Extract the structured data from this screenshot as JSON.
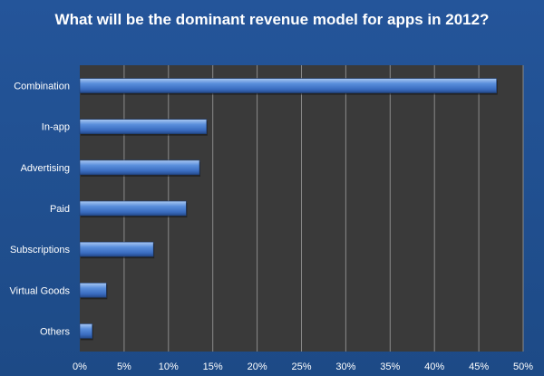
{
  "chart_data": {
    "type": "bar",
    "orientation": "horizontal",
    "title": "What will be the dominant revenue model for apps in 2012?",
    "categories": [
      "Combination",
      "In-app",
      "Advertising",
      "Paid",
      "Subscriptions",
      "Virtual Goods",
      "Others"
    ],
    "values": [
      47,
      14.3,
      13.5,
      12,
      8.3,
      3,
      1.4
    ],
    "xlim": [
      0,
      50
    ],
    "xticks": [
      "0%",
      "5%",
      "10%",
      "15%",
      "20%",
      "25%",
      "30%",
      "35%",
      "40%",
      "45%",
      "50%"
    ],
    "grid": true,
    "legend": "none"
  },
  "colors": {
    "background": "#1f4e8c",
    "plot_area": "#3a3a3a",
    "bar": "#4a7fd0",
    "gridline": "#8a8a8a"
  }
}
